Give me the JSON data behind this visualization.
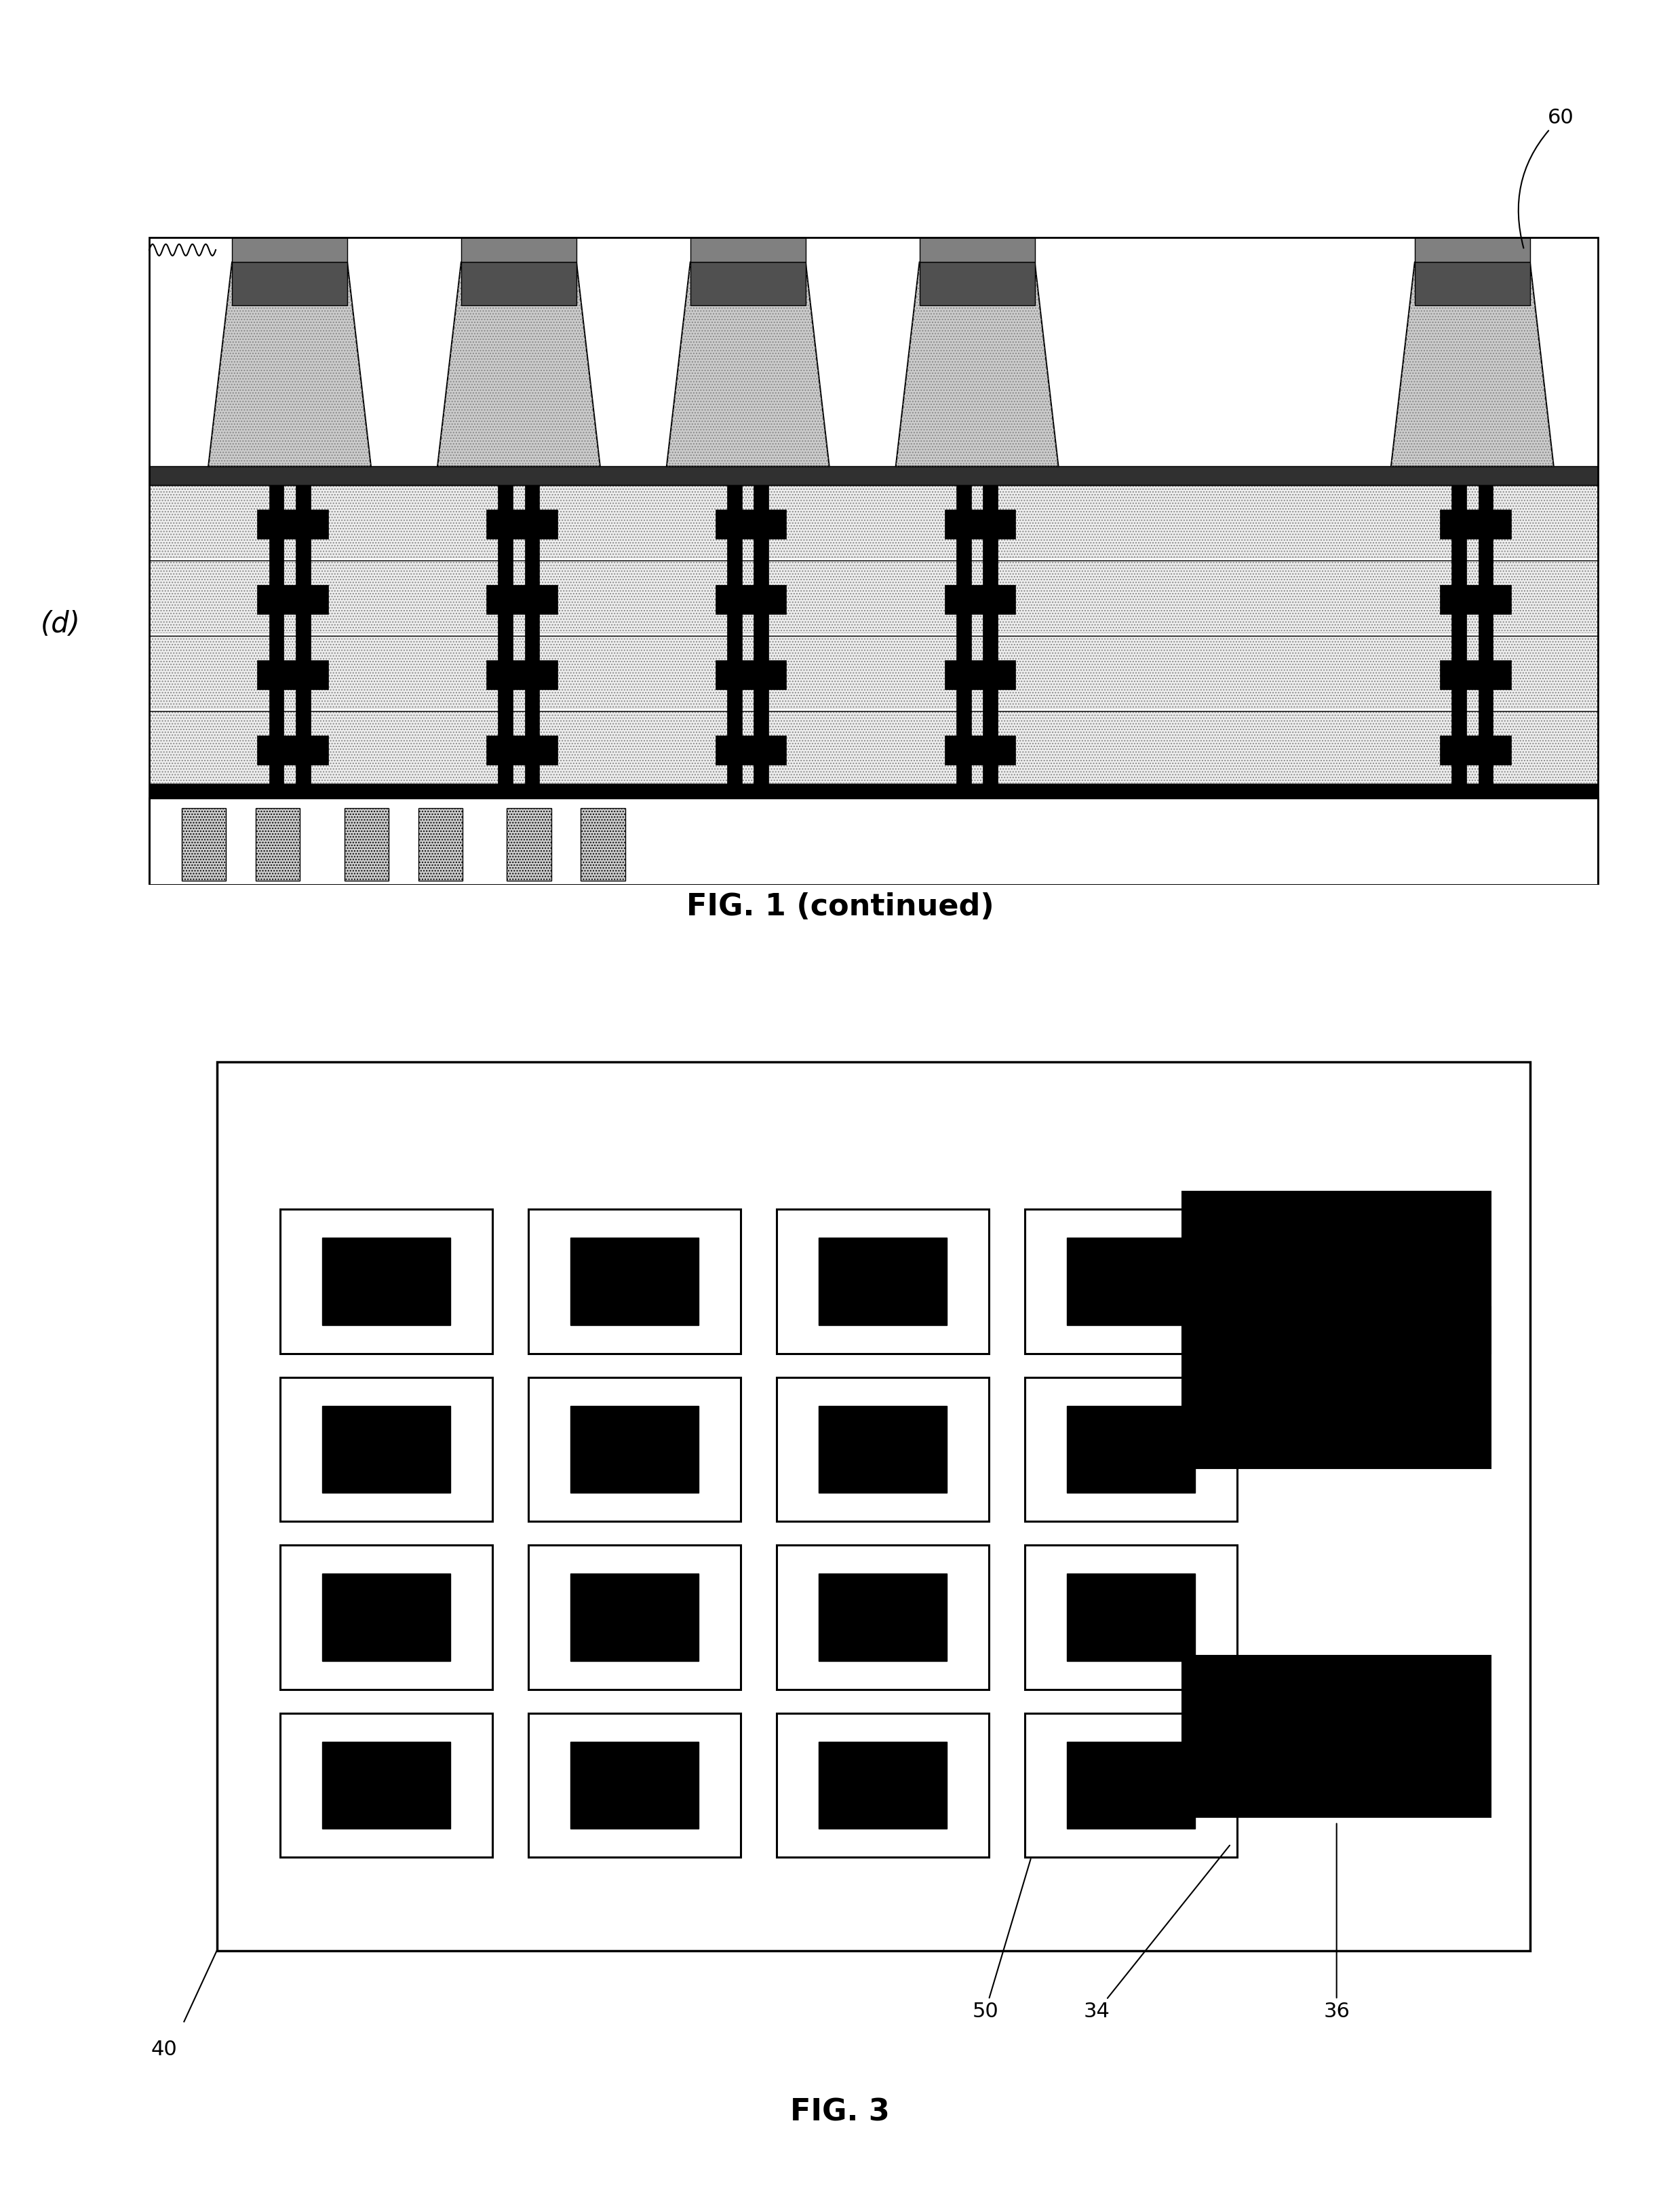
{
  "fig_width": 24.77,
  "fig_height": 32.6,
  "bg_color": "#ffffff",
  "fig1_label": "(d)",
  "fig1_caption": "FIG. 1 (continued)",
  "fig3_caption": "FIG. 3",
  "label_60": "60",
  "label_40": "40",
  "label_50": "50",
  "label_34": "34",
  "label_36": "36"
}
